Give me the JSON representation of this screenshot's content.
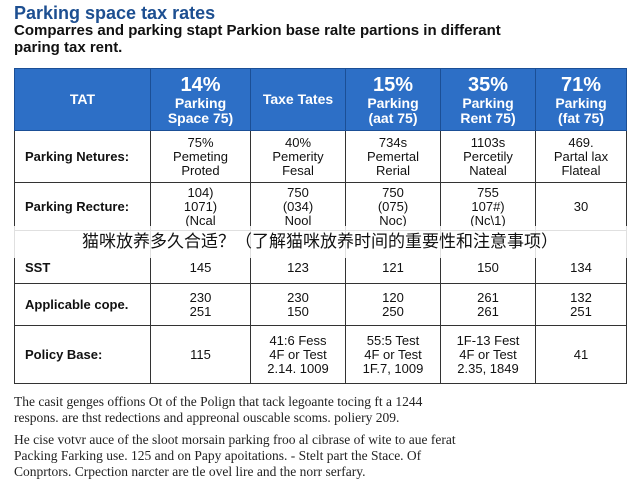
{
  "title": "Parking space tax rates",
  "subtitle": [
    "Comparres and parking stapt Parkion base ralte partions in differant",
    "paring tax rent."
  ],
  "table": {
    "header": [
      [
        "TAT"
      ],
      [
        "14%",
        "Parking",
        "Space 75)"
      ],
      [
        "Taxe Tates"
      ],
      [
        "15%",
        "Parking",
        "(aat 75)"
      ],
      [
        "35%",
        "Parking",
        "Rent 75)"
      ],
      [
        "71%",
        "Parking",
        "(fat 75)"
      ]
    ],
    "rows": [
      [
        [
          "Parking Netures:"
        ],
        [
          "75%",
          "Pemeting",
          "Proted"
        ],
        [
          "40%",
          "Pemerity",
          "Fesal"
        ],
        [
          "734s",
          "Pemertal",
          "Rerial"
        ],
        [
          "1103s",
          "Percetily",
          "Nateal"
        ],
        [
          "469.",
          "Partal lax",
          "Flateal"
        ]
      ],
      [
        [
          "Parking Recture:"
        ],
        [
          "104)",
          "1071)",
          "(Ncal"
        ],
        [
          "750",
          "(034)",
          "Nool"
        ],
        [
          "750",
          "(075)",
          "Noc)"
        ],
        [
          "755",
          "107#)",
          "(Nc\\1)"
        ],
        [
          "30"
        ]
      ],
      [
        [
          "SST"
        ],
        [
          "145"
        ],
        [
          "123"
        ],
        [
          "121"
        ],
        [
          "150"
        ],
        [
          "134"
        ]
      ],
      [
        [
          "Applicable cope."
        ],
        [
          "230",
          "251"
        ],
        [
          "230",
          "150"
        ],
        [
          "120",
          "250"
        ],
        [
          "261",
          "261"
        ],
        [
          "132",
          "251"
        ]
      ],
      [
        [
          "Policy Base:"
        ],
        [
          "115"
        ],
        [
          "41:6 Fess",
          "4F or Test",
          "2.14. 1009"
        ],
        [
          "55:5 Test",
          "4F or Test",
          "1F.7, 1009"
        ],
        [
          "1F-13 Fest",
          "4F or Test",
          "2.35, 1849"
        ],
        [
          "41"
        ]
      ]
    ]
  },
  "overlay": "猫咪放养多久合适？（了解猫咪放养时间的重要性和注意事项）",
  "footer": [
    [
      "The casit genges offions Ot of the Polign that tack legoante tocing ft a 1244",
      "respons. are thst redections and appreonal ouscable scoms. poliery 209."
    ],
    [
      "He cise votvr auce of the sloot morsain parking froo al cibrase of wite to aue ferat",
      "Packing Farking use. 125 and on Papy apoitations. - Stelt part the Stace. Of",
      "Conprtors. Crpection narcter are tle ovel lire and the norr serfary."
    ]
  ]
}
